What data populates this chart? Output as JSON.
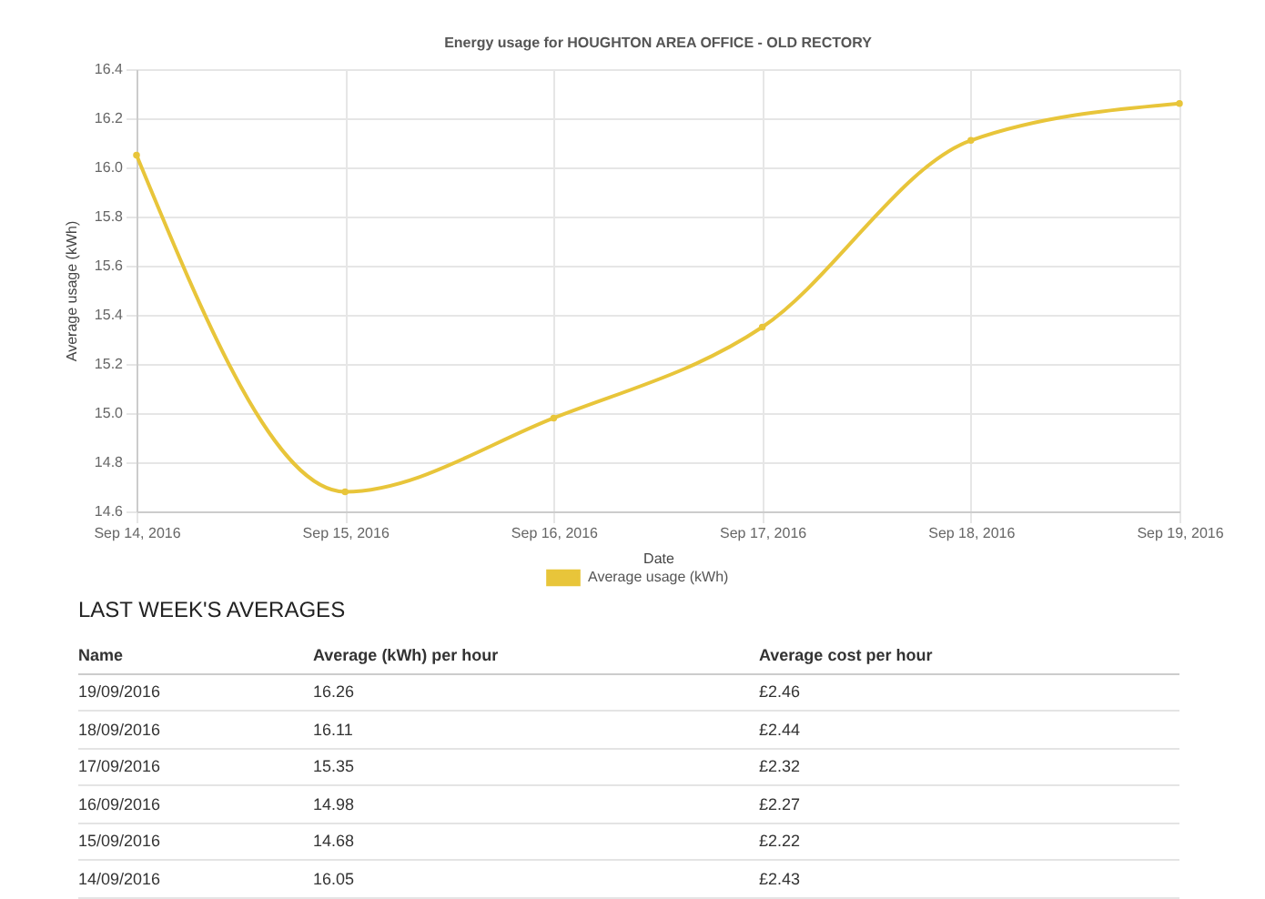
{
  "chart_data": {
    "type": "line",
    "title": "Energy usage for HOUGHTON AREA OFFICE - OLD RECTORY",
    "xlabel": "Date",
    "ylabel": "Average usage (kWh)",
    "x": [
      "2016-09-14",
      "2016-09-15",
      "2016-09-16",
      "2016-09-17",
      "2016-09-18",
      "2016-09-19"
    ],
    "series": [
      {
        "name": "Average usage (kWh)",
        "color": "#e8c53a",
        "values": [
          16.05,
          14.68,
          14.98,
          15.35,
          16.11,
          16.26
        ]
      }
    ],
    "xlim": [
      "2016-09-14",
      "2016-09-19"
    ],
    "xticks": [
      {
        "value": "2016-09-14",
        "label": "Sep 14, 2016"
      },
      {
        "value": "2016-09-15",
        "label": "Sep 15, 2016"
      },
      {
        "value": "2016-09-16",
        "label": "Sep 16, 2016"
      },
      {
        "value": "2016-09-17",
        "label": "Sep 17, 2016"
      },
      {
        "value": "2016-09-18",
        "label": "Sep 18, 2016"
      },
      {
        "value": "2016-09-19",
        "label": "Sep 19, 2016"
      }
    ],
    "ylim": [
      14.6,
      16.4
    ],
    "yticks": [
      14.6,
      14.8,
      {
        "value": 15,
        "label": "15.0"
      },
      15.2,
      15.4,
      15.6,
      15.8,
      {
        "value": 16,
        "label": "16.0"
      },
      16.2,
      16.4
    ],
    "grid": true,
    "legend": "bottom",
    "marker": "circle",
    "line_style": "solid",
    "annotations": [
      "LAST WEEK'S AVERAGES",
      "Name",
      "Average (kWh) per hour",
      "Average cost per hour",
      "19/09/2016",
      "16.26",
      "£2.46",
      "18/09/2016",
      "16.11",
      "£2.44",
      "17/09/2016",
      "15.35",
      "£2.32",
      "16/09/2016",
      "14.98",
      "£2.27",
      "15/09/2016",
      "14.68",
      "£2.22",
      "14/09/2016",
      "16.05",
      "£2.43"
    ]
  }
}
